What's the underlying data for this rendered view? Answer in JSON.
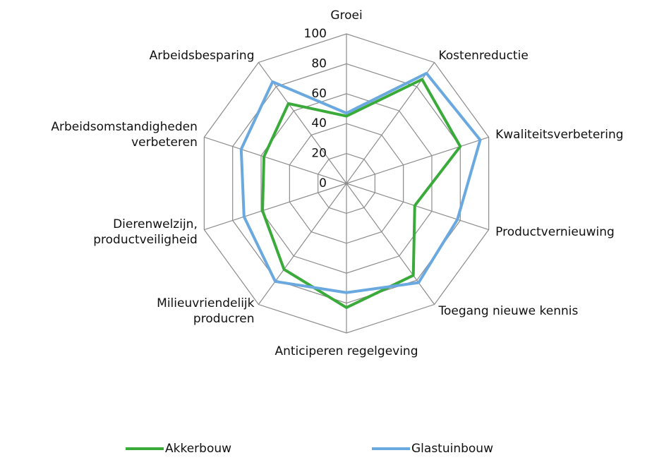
{
  "chart_data": {
    "type": "radar",
    "categories": [
      "Groei",
      "Kostenreductie",
      "Kwaliteitsverbetering",
      "Productvernieuwing",
      "Toegang nieuwe kennis",
      "Anticiperen regelgeving",
      "Milieuvriendelijk\nproducren",
      "Dierenwelzijn,\nproductveiligheid",
      "Arbeidsomstandigheden\nverbeteren",
      "Arbeidsbesparing"
    ],
    "series": [
      {
        "name": "Akkerbouw",
        "color": "#3aab3a",
        "values": [
          45,
          86,
          80,
          48,
          76,
          83,
          71,
          59,
          58,
          66
        ]
      },
      {
        "name": "Glastuinbouw",
        "color": "#6aa8e0",
        "values": [
          47,
          91,
          94,
          78,
          82,
          73,
          81,
          72,
          74,
          84
        ]
      }
    ],
    "ylim": [
      0,
      100
    ],
    "yticks": [
      0,
      20,
      40,
      60,
      80,
      100
    ],
    "grid": true,
    "legend": "bottom"
  }
}
